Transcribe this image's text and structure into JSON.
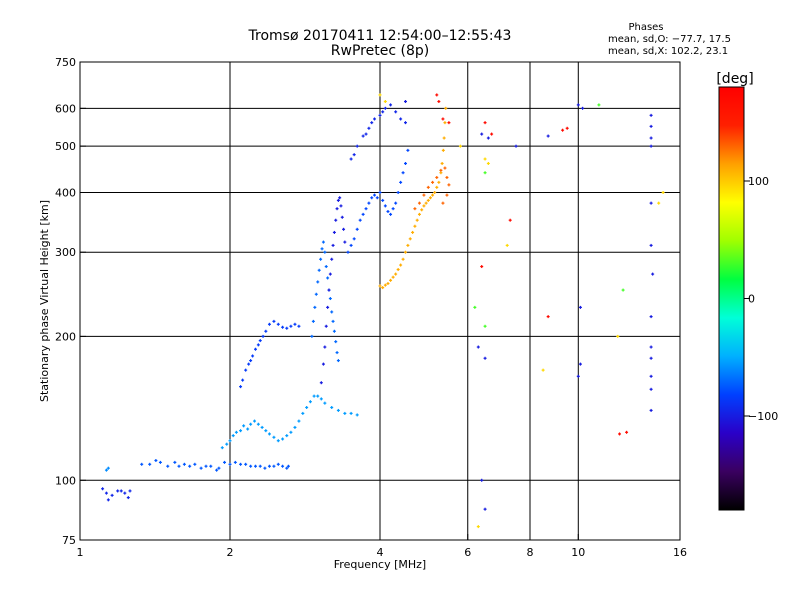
{
  "chart_data": {
    "type": "scatter",
    "title": "Tromsø 20170411 12:54:00–12:55:43",
    "subtitle": "RwPretec (8p)",
    "phases": {
      "heading": "Phases",
      "line_o": "mean, sd,O: −77.7, 17.5",
      "line_x": "mean, sd,X: 102.2, 23.1"
    },
    "xlabel": "Frequency [MHz]",
    "ylabel": "Stationary phase Virtual Height [km]",
    "x_scale": "log",
    "y_scale": "log",
    "xlim": [
      1,
      16
    ],
    "ylim": [
      75,
      750
    ],
    "x_ticks": [
      {
        "value": 1,
        "label": "1"
      },
      {
        "value": 2,
        "label": "2"
      },
      {
        "value": 4,
        "label": "4"
      },
      {
        "value": 6,
        "label": "6"
      },
      {
        "value": 8,
        "label": "8"
      },
      {
        "value": 10,
        "label": "10"
      },
      {
        "value": 16,
        "label": "16"
      }
    ],
    "x_grid": [
      2,
      4,
      6,
      8,
      10
    ],
    "y_ticks": [
      {
        "value": 75,
        "label": "75"
      },
      {
        "value": 100,
        "label": "100"
      },
      {
        "value": 200,
        "label": "200"
      },
      {
        "value": 300,
        "label": "300"
      },
      {
        "value": 400,
        "label": "400"
      },
      {
        "value": 500,
        "label": "500"
      },
      {
        "value": 600,
        "label": "600"
      },
      {
        "value": 750,
        "label": "750"
      }
    ],
    "y_grid": [
      100,
      200,
      300,
      400,
      500,
      600
    ],
    "colorbar": {
      "label": "[deg]",
      "range": [
        -180,
        180
      ],
      "ticks": [
        {
          "value": 100,
          "label": "100"
        },
        {
          "value": 0,
          "label": "0"
        },
        {
          "value": -100,
          "label": "−100"
        }
      ],
      "colors": [
        "#000000",
        "#3a0060",
        "#2a00c8",
        "#0040ff",
        "#00b0ff",
        "#00ffd8",
        "#00ff40",
        "#a0ff00",
        "#ffff00",
        "#ffa000",
        "#ff2000",
        "#ff0000"
      ]
    },
    "series": [
      {
        "name": "trace-low-1",
        "phase": -60,
        "points": [
          [
            1.13,
            105
          ],
          [
            1.14,
            106
          ]
        ]
      },
      {
        "name": "trace-low-2",
        "phase": -95,
        "points": [
          [
            1.11,
            96
          ],
          [
            1.13,
            94
          ],
          [
            1.14,
            91
          ],
          [
            1.16,
            93
          ],
          [
            1.19,
            95
          ],
          [
            1.21,
            95
          ],
          [
            1.23,
            94
          ],
          [
            1.25,
            92
          ],
          [
            1.26,
            95
          ]
        ]
      },
      {
        "name": "trace-e-layer",
        "phase": -75,
        "points": [
          [
            1.33,
            108
          ],
          [
            1.38,
            108
          ],
          [
            1.42,
            110
          ],
          [
            1.45,
            109
          ],
          [
            1.5,
            107
          ],
          [
            1.55,
            109
          ],
          [
            1.58,
            107
          ],
          [
            1.62,
            108
          ],
          [
            1.66,
            107
          ],
          [
            1.7,
            108
          ],
          [
            1.75,
            106
          ],
          [
            1.79,
            107
          ],
          [
            1.83,
            107
          ],
          [
            1.88,
            105
          ],
          [
            1.9,
            106
          ],
          [
            1.95,
            109
          ],
          [
            2.0,
            108
          ],
          [
            2.05,
            109
          ],
          [
            2.1,
            108
          ],
          [
            2.15,
            108
          ],
          [
            2.2,
            107
          ],
          [
            2.25,
            107
          ],
          [
            2.3,
            107
          ],
          [
            2.35,
            106
          ],
          [
            2.4,
            107
          ],
          [
            2.45,
            107
          ],
          [
            2.5,
            108
          ],
          [
            2.55,
            107
          ],
          [
            2.6,
            106
          ],
          [
            2.62,
            107
          ]
        ]
      },
      {
        "name": "trace-lower-ramp",
        "phase": -55,
        "points": [
          [
            1.93,
            117
          ],
          [
            1.97,
            119
          ],
          [
            2.0,
            121
          ],
          [
            2.03,
            124
          ],
          [
            2.06,
            126
          ],
          [
            2.1,
            127
          ],
          [
            2.13,
            130
          ],
          [
            2.17,
            128
          ],
          [
            2.2,
            131
          ],
          [
            2.24,
            133
          ],
          [
            2.28,
            131
          ],
          [
            2.32,
            129
          ],
          [
            2.36,
            127
          ],
          [
            2.4,
            125
          ],
          [
            2.45,
            123
          ],
          [
            2.5,
            121
          ],
          [
            2.55,
            122
          ],
          [
            2.6,
            124
          ],
          [
            2.65,
            126
          ],
          [
            2.7,
            129
          ],
          [
            2.75,
            133
          ],
          [
            2.8,
            138
          ],
          [
            2.85,
            142
          ],
          [
            2.9,
            146
          ],
          [
            2.95,
            150
          ],
          [
            3.0,
            150
          ],
          [
            3.05,
            148
          ],
          [
            3.1,
            145
          ],
          [
            3.2,
            142
          ],
          [
            3.3,
            140
          ],
          [
            3.4,
            138
          ],
          [
            3.5,
            138
          ],
          [
            3.6,
            137
          ]
        ]
      },
      {
        "name": "trace-o-cusp",
        "phase": -85,
        "points": [
          [
            2.1,
            157
          ],
          [
            2.12,
            162
          ],
          [
            2.15,
            170
          ],
          [
            2.18,
            175
          ],
          [
            2.2,
            178
          ],
          [
            2.22,
            182
          ],
          [
            2.25,
            188
          ],
          [
            2.28,
            192
          ],
          [
            2.3,
            196
          ],
          [
            2.33,
            200
          ],
          [
            2.36,
            205
          ],
          [
            2.4,
            212
          ],
          [
            2.45,
            215
          ],
          [
            2.5,
            212
          ],
          [
            2.55,
            209
          ],
          [
            2.6,
            208
          ],
          [
            2.65,
            210
          ],
          [
            2.7,
            212
          ],
          [
            2.75,
            210
          ]
        ]
      },
      {
        "name": "trace-column-a",
        "phase": -70,
        "points": [
          [
            2.92,
            200
          ],
          [
            2.94,
            215
          ],
          [
            2.96,
            230
          ],
          [
            2.98,
            245
          ],
          [
            3.0,
            260
          ],
          [
            3.02,
            275
          ],
          [
            3.04,
            290
          ],
          [
            3.06,
            305
          ],
          [
            3.08,
            315
          ],
          [
            3.1,
            300
          ],
          [
            3.12,
            280
          ],
          [
            3.14,
            265
          ],
          [
            3.16,
            250
          ],
          [
            3.18,
            240
          ],
          [
            3.2,
            225
          ],
          [
            3.22,
            215
          ],
          [
            3.24,
            205
          ],
          [
            3.26,
            195
          ],
          [
            3.28,
            185
          ],
          [
            3.3,
            178
          ]
        ]
      },
      {
        "name": "trace-column-b",
        "phase": -100,
        "points": [
          [
            3.05,
            160
          ],
          [
            3.08,
            175
          ],
          [
            3.1,
            190
          ],
          [
            3.12,
            210
          ],
          [
            3.14,
            230
          ],
          [
            3.16,
            250
          ],
          [
            3.18,
            270
          ],
          [
            3.2,
            290
          ],
          [
            3.22,
            310
          ],
          [
            3.24,
            330
          ],
          [
            3.26,
            350
          ],
          [
            3.28,
            370
          ],
          [
            3.3,
            385
          ],
          [
            3.32,
            390
          ],
          [
            3.34,
            375
          ],
          [
            3.36,
            355
          ],
          [
            3.38,
            335
          ],
          [
            3.4,
            315
          ]
        ]
      },
      {
        "name": "trace-upper-ox",
        "phase": -80,
        "points": [
          [
            3.45,
            300
          ],
          [
            3.5,
            310
          ],
          [
            3.55,
            320
          ],
          [
            3.6,
            335
          ],
          [
            3.65,
            350
          ],
          [
            3.7,
            360
          ],
          [
            3.75,
            370
          ],
          [
            3.8,
            380
          ],
          [
            3.85,
            390
          ],
          [
            3.9,
            395
          ],
          [
            3.95,
            390
          ],
          [
            4.0,
            400
          ],
          [
            4.05,
            385
          ],
          [
            4.1,
            375
          ],
          [
            4.15,
            365
          ],
          [
            4.2,
            360
          ],
          [
            4.25,
            370
          ],
          [
            4.3,
            380
          ],
          [
            4.35,
            400
          ],
          [
            4.4,
            420
          ],
          [
            4.45,
            440
          ],
          [
            4.5,
            460
          ],
          [
            4.55,
            490
          ]
        ]
      },
      {
        "name": "trace-high-scatter",
        "phase": -95,
        "points": [
          [
            3.5,
            470
          ],
          [
            3.55,
            480
          ],
          [
            3.6,
            500
          ],
          [
            3.7,
            525
          ],
          [
            3.75,
            530
          ],
          [
            3.8,
            545
          ],
          [
            3.85,
            560
          ],
          [
            3.9,
            570
          ],
          [
            4.0,
            580
          ],
          [
            4.05,
            590
          ],
          [
            4.1,
            600
          ],
          [
            4.2,
            610
          ],
          [
            4.3,
            590
          ],
          [
            4.4,
            570
          ],
          [
            4.5,
            560
          ]
        ]
      },
      {
        "name": "trace-x-mode",
        "phase": 110,
        "points": [
          [
            4.0,
            255
          ],
          [
            4.05,
            253
          ],
          [
            4.1,
            256
          ],
          [
            4.15,
            258
          ],
          [
            4.2,
            262
          ],
          [
            4.25,
            266
          ],
          [
            4.3,
            270
          ],
          [
            4.35,
            276
          ],
          [
            4.4,
            282
          ],
          [
            4.45,
            290
          ],
          [
            4.5,
            300
          ],
          [
            4.55,
            310
          ],
          [
            4.6,
            320
          ],
          [
            4.65,
            330
          ],
          [
            4.7,
            340
          ],
          [
            4.75,
            350
          ],
          [
            4.8,
            360
          ],
          [
            4.85,
            368
          ],
          [
            4.9,
            375
          ],
          [
            4.95,
            380
          ],
          [
            5.0,
            385
          ],
          [
            5.05,
            390
          ],
          [
            5.1,
            395
          ],
          [
            5.15,
            400
          ],
          [
            5.2,
            410
          ],
          [
            5.25,
            420
          ],
          [
            5.3,
            440
          ],
          [
            5.33,
            460
          ],
          [
            5.36,
            490
          ],
          [
            5.38,
            520
          ],
          [
            5.4,
            560
          ],
          [
            5.42,
            600
          ]
        ]
      },
      {
        "name": "trace-x-band",
        "phase": 130,
        "points": [
          [
            4.7,
            370
          ],
          [
            4.8,
            380
          ],
          [
            4.9,
            395
          ],
          [
            5.0,
            410
          ],
          [
            5.1,
            420
          ],
          [
            5.2,
            430
          ],
          [
            5.3,
            445
          ],
          [
            5.4,
            450
          ],
          [
            5.45,
            430
          ],
          [
            5.5,
            415
          ],
          [
            5.45,
            395
          ],
          [
            5.35,
            380
          ]
        ]
      },
      {
        "name": "scatter-red",
        "phase": 170,
        "points": [
          [
            5.2,
            640
          ],
          [
            5.25,
            620
          ],
          [
            5.35,
            570
          ],
          [
            5.5,
            560
          ],
          [
            6.5,
            560
          ],
          [
            6.7,
            530
          ],
          [
            9.3,
            540
          ],
          [
            9.5,
            545
          ],
          [
            6.4,
            280
          ],
          [
            7.3,
            350
          ],
          [
            8.7,
            220
          ],
          [
            12.1,
            125
          ],
          [
            12.5,
            126
          ]
        ]
      },
      {
        "name": "scatter-yellow",
        "phase": 95,
        "points": [
          [
            4.0,
            640
          ],
          [
            4.1,
            620
          ],
          [
            5.8,
            500
          ],
          [
            6.5,
            470
          ],
          [
            6.6,
            460
          ],
          [
            7.2,
            310
          ],
          [
            8.5,
            170
          ],
          [
            6.3,
            80
          ],
          [
            12.0,
            200
          ],
          [
            14.5,
            380
          ],
          [
            14.8,
            400
          ]
        ]
      },
      {
        "name": "scatter-green",
        "phase": 30,
        "points": [
          [
            6.5,
            440
          ],
          [
            11.0,
            610
          ],
          [
            12.3,
            250
          ],
          [
            6.2,
            230
          ],
          [
            6.5,
            210
          ]
        ]
      },
      {
        "name": "scatter-blue",
        "phase": -100,
        "points": [
          [
            4.5,
            620
          ],
          [
            6.4,
            530
          ],
          [
            6.6,
            520
          ],
          [
            7.5,
            500
          ],
          [
            8.7,
            525
          ],
          [
            10.0,
            610
          ],
          [
            10.2,
            600
          ],
          [
            14.0,
            580
          ],
          [
            14.0,
            550
          ],
          [
            14.0,
            520
          ],
          [
            14.0,
            500
          ],
          [
            14.0,
            380
          ],
          [
            14.0,
            310
          ],
          [
            14.1,
            270
          ],
          [
            14.0,
            220
          ],
          [
            14.0,
            190
          ],
          [
            14.0,
            180
          ],
          [
            14.0,
            165
          ],
          [
            14.0,
            155
          ],
          [
            14.0,
            140
          ],
          [
            10.1,
            175
          ],
          [
            10.0,
            165
          ],
          [
            10.1,
            230
          ],
          [
            6.3,
            190
          ],
          [
            6.5,
            180
          ],
          [
            6.4,
            100
          ],
          [
            6.5,
            87
          ]
        ]
      }
    ]
  }
}
